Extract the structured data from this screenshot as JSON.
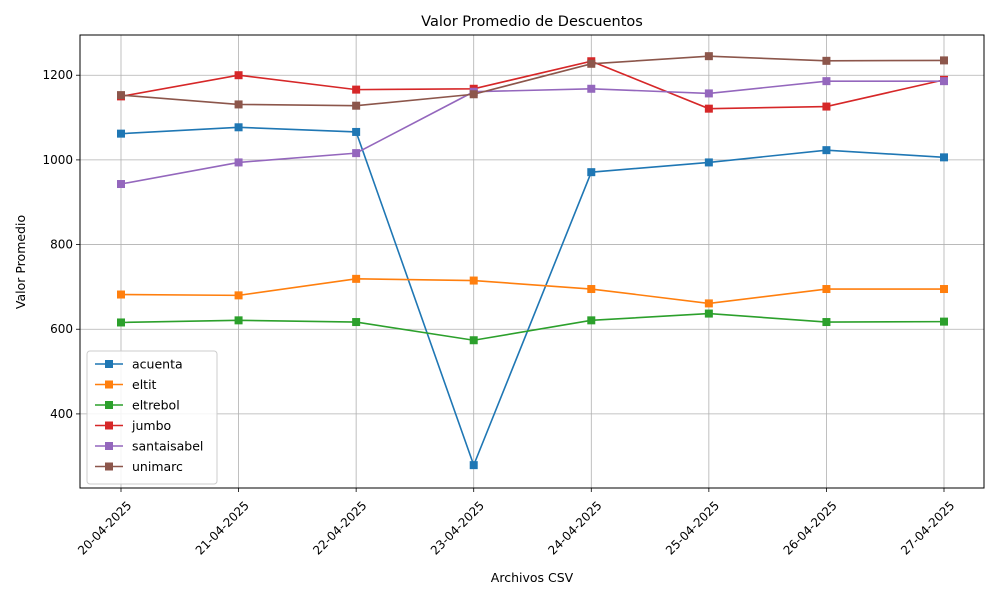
{
  "chart_data": {
    "type": "line",
    "title": "Valor Promedio de Descuentos",
    "xlabel": "Archivos CSV",
    "ylabel": "Valor Promedio",
    "categories": [
      "20-04-2025",
      "21-04-2025",
      "22-04-2025",
      "23-04-2025",
      "24-04-2025",
      "25-04-2025",
      "26-04-2025",
      "27-04-2025"
    ],
    "ylim": [
      225,
      1295
    ],
    "yticks": [
      400,
      600,
      800,
      1000,
      1200
    ],
    "grid": true,
    "legend_position": "lower-left",
    "marker": "square",
    "series": [
      {
        "name": "acuenta",
        "color": "#1f77b4",
        "values": [
          1062,
          1077,
          1066,
          279,
          971,
          994,
          1023,
          1006
        ]
      },
      {
        "name": "eltit",
        "color": "#ff7f0e",
        "values": [
          682,
          680,
          719,
          715,
          695,
          661,
          695,
          695
        ]
      },
      {
        "name": "eltrebol",
        "color": "#2ca02c",
        "values": [
          616,
          621,
          617,
          574,
          621,
          637,
          617,
          618
        ]
      },
      {
        "name": "jumbo",
        "color": "#d62728",
        "values": [
          1150,
          1200,
          1166,
          1168,
          1233,
          1121,
          1126,
          1189
        ]
      },
      {
        "name": "santaisabel",
        "color": "#9467bd",
        "values": [
          943,
          994,
          1016,
          1161,
          1168,
          1157,
          1186,
          1186
        ]
      },
      {
        "name": "unimarc",
        "color": "#8c564b",
        "values": [
          1153,
          1131,
          1128,
          1155,
          1227,
          1245,
          1234,
          1235
        ]
      }
    ]
  }
}
